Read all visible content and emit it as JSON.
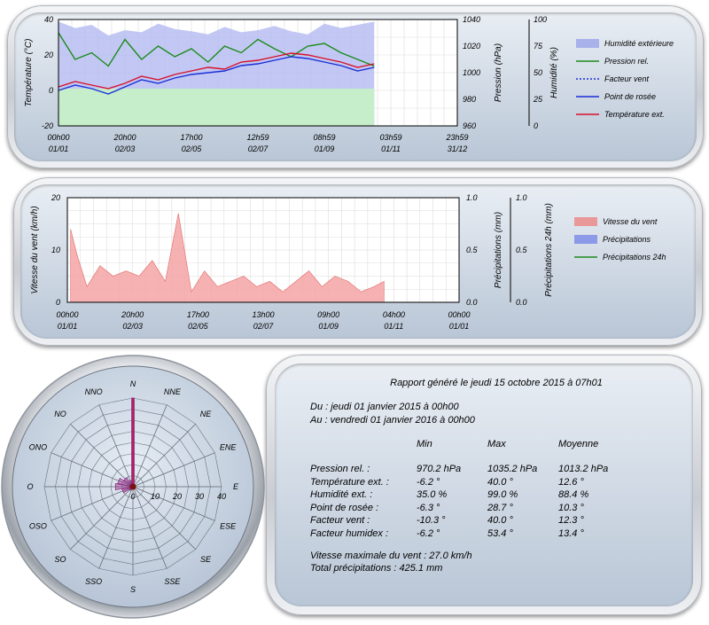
{
  "chart1": {
    "type": "line",
    "x_ticks": [
      [
        "00h00",
        "01/01"
      ],
      [
        "20h00",
        "02/03"
      ],
      [
        "17h00",
        "02/05"
      ],
      [
        "12h59",
        "02/07"
      ],
      [
        "08h59",
        "01/09"
      ],
      [
        "03h59",
        "01/11"
      ],
      [
        "23h59",
        "31/12"
      ]
    ],
    "ylabel_left": "Température (°C)",
    "ylabel_mid": "Pression (hPa)",
    "ylabel_right": "Humidité (%)",
    "y_left_ticks": [
      "40",
      "20",
      "0",
      "-20"
    ],
    "y_mid_ticks": [
      "1040",
      "1020",
      "1000",
      "980",
      "960"
    ],
    "y_right_ticks": [
      "100",
      "75",
      "50",
      "25",
      "0"
    ],
    "legend": [
      {
        "label": "Humidité extérieure",
        "color": "#9aa4e8",
        "style": "area"
      },
      {
        "label": "Pression rel.",
        "color": "#1c8a1c",
        "style": "line"
      },
      {
        "label": "Facteur vent",
        "color": "#1a2fd8",
        "style": "dotted"
      },
      {
        "label": "Point de rosée",
        "color": "#1a2fd8",
        "style": "line"
      },
      {
        "label": "Température ext.",
        "color": "#d8102c",
        "style": "line"
      }
    ]
  },
  "chart2": {
    "type": "area",
    "x_ticks": [
      [
        "00h00",
        "01/01"
      ],
      [
        "20h00",
        "02/03"
      ],
      [
        "17h00",
        "02/05"
      ],
      [
        "13h00",
        "02/07"
      ],
      [
        "09h00",
        "01/09"
      ],
      [
        "04h00",
        "01/11"
      ],
      [
        "00h00",
        "01/01"
      ]
    ],
    "ylabel_left": "Vitesse du vent (km/h)",
    "ylabel_mid": "Précipitations (mm)",
    "ylabel_right": "Précipitations 24h (mm)",
    "y_left_ticks": [
      "20",
      "10",
      "0"
    ],
    "y_mid_ticks": [
      "1.0",
      "0.5",
      "0.0"
    ],
    "y_right_ticks": [
      "1.0",
      "0.5",
      "0.0"
    ],
    "legend": [
      {
        "label": "Vitesse du vent",
        "color": "#ec8a8a",
        "style": "area"
      },
      {
        "label": "Précipitations",
        "color": "#7f8de8",
        "style": "area"
      },
      {
        "label": "Précipitations 24h",
        "color": "#1c8a1c",
        "style": "line"
      }
    ]
  },
  "chart_data": [
    {
      "type": "line",
      "title": "",
      "xlabel": "",
      "ylabel": "Température (°C)",
      "x_range": [
        "01/01 00h00",
        "31/12 23h59"
      ],
      "ylim": [
        -20,
        40
      ],
      "pressure_ylim": [
        960,
        1040
      ],
      "humidity_ylim": [
        0,
        100
      ],
      "x_months": [
        0,
        0.5,
        1,
        1.5,
        2,
        2.5,
        3,
        3.5,
        4,
        4.5,
        5,
        5.5,
        6,
        6.5,
        7,
        7.5,
        8,
        8.5,
        9,
        9.5
      ],
      "series": [
        {
          "name": "Température ext.",
          "values": [
            2,
            5,
            3,
            1,
            4,
            8,
            6,
            9,
            11,
            13,
            12,
            16,
            17,
            19,
            21,
            20,
            18,
            16,
            13,
            15
          ],
          "color": "#d8102c"
        },
        {
          "name": "Point de rosée",
          "values": [
            0,
            3,
            1,
            -2,
            2,
            6,
            4,
            7,
            9,
            10,
            11,
            14,
            15,
            17,
            19,
            18,
            16,
            14,
            11,
            13
          ],
          "color": "#1a2fd8"
        },
        {
          "name": "Pression rel.",
          "values": [
            1030,
            1010,
            1015,
            1005,
            1025,
            1010,
            1020,
            1012,
            1018,
            1008,
            1020,
            1015,
            1025,
            1018,
            1012,
            1020,
            1022,
            1015,
            1010,
            1005
          ],
          "color": "#1c8a1c"
        },
        {
          "name": "Humidité extérieure",
          "values": [
            98,
            92,
            95,
            85,
            90,
            88,
            96,
            91,
            89,
            86,
            93,
            88,
            90,
            94,
            89,
            86,
            96,
            92,
            95,
            98
          ],
          "color": "#9aa4e8"
        }
      ]
    },
    {
      "type": "area",
      "title": "",
      "ylabel": "Vitesse du vent (km/h)",
      "ylim": [
        0,
        20
      ],
      "x_range": [
        "01/01 00h00",
        "01/01 00h00"
      ],
      "x_months": [
        0.1,
        0.3,
        0.6,
        1.0,
        1.4,
        1.8,
        2.2,
        2.6,
        3.0,
        3.4,
        3.8,
        4.2,
        4.6,
        5.0,
        5.4,
        5.8,
        6.2,
        6.6,
        7.0,
        7.4,
        7.8,
        8.2,
        8.6,
        9.0,
        9.4,
        9.7
      ],
      "series": [
        {
          "name": "Vitesse du vent",
          "values": [
            14,
            9,
            3,
            7,
            5,
            6,
            5,
            8,
            4,
            17,
            2,
            6,
            3,
            4,
            5,
            3,
            4,
            2,
            4,
            6,
            3,
            5,
            4,
            2,
            3,
            4
          ],
          "color": "#ec8a8a"
        }
      ]
    },
    {
      "type": "rose",
      "title": "",
      "directions": [
        "N",
        "NNE",
        "NE",
        "ENE",
        "E",
        "ESE",
        "SE",
        "SSE",
        "S",
        "SSO",
        "SO",
        "OSO",
        "O",
        "ONO",
        "NO",
        "NNO"
      ],
      "ring_ticks": [
        "0",
        "10",
        "20",
        "30",
        "40"
      ],
      "values": [
        40,
        1,
        1,
        0,
        0,
        0,
        0,
        0,
        1,
        1,
        2,
        5,
        8,
        7,
        5,
        3
      ],
      "color": "#a03090"
    }
  ],
  "report": {
    "title": "Rapport généré le jeudi 15 octobre 2015 à 07h01",
    "from": "Du : jeudi 01 janvier 2015 à 00h00",
    "to": "Au : vendredi 01 janvier 2016 à 00h00",
    "col_min": "Min",
    "col_max": "Max",
    "col_avg": "Moyenne",
    "rows": [
      {
        "label": "Pression rel. :",
        "min": "970.2 hPa",
        "max": "1035.2 hPa",
        "avg": "1013.2 hPa"
      },
      {
        "label": "Température ext. :",
        "min": "-6.2 °",
        "max": "40.0 °",
        "avg": "12.6 °"
      },
      {
        "label": "Humidité ext. :",
        "min": "35.0 %",
        "max": "99.0 %",
        "avg": "88.4 %"
      },
      {
        "label": "Point de rosée :",
        "min": "-6.3 °",
        "max": "28.7 °",
        "avg": "10.3 °"
      },
      {
        "label": "Facteur vent :",
        "min": "-10.3 °",
        "max": "40.0 °",
        "avg": "12.3 °"
      },
      {
        "label": "Facteur humidex :",
        "min": "-6.2 °",
        "max": "53.4 °",
        "avg": "13.4 °"
      }
    ],
    "max_wind": "Vitesse maximale du vent : 27.0 km/h",
    "total_rain": "Total précipitations : 425.1 mm"
  }
}
